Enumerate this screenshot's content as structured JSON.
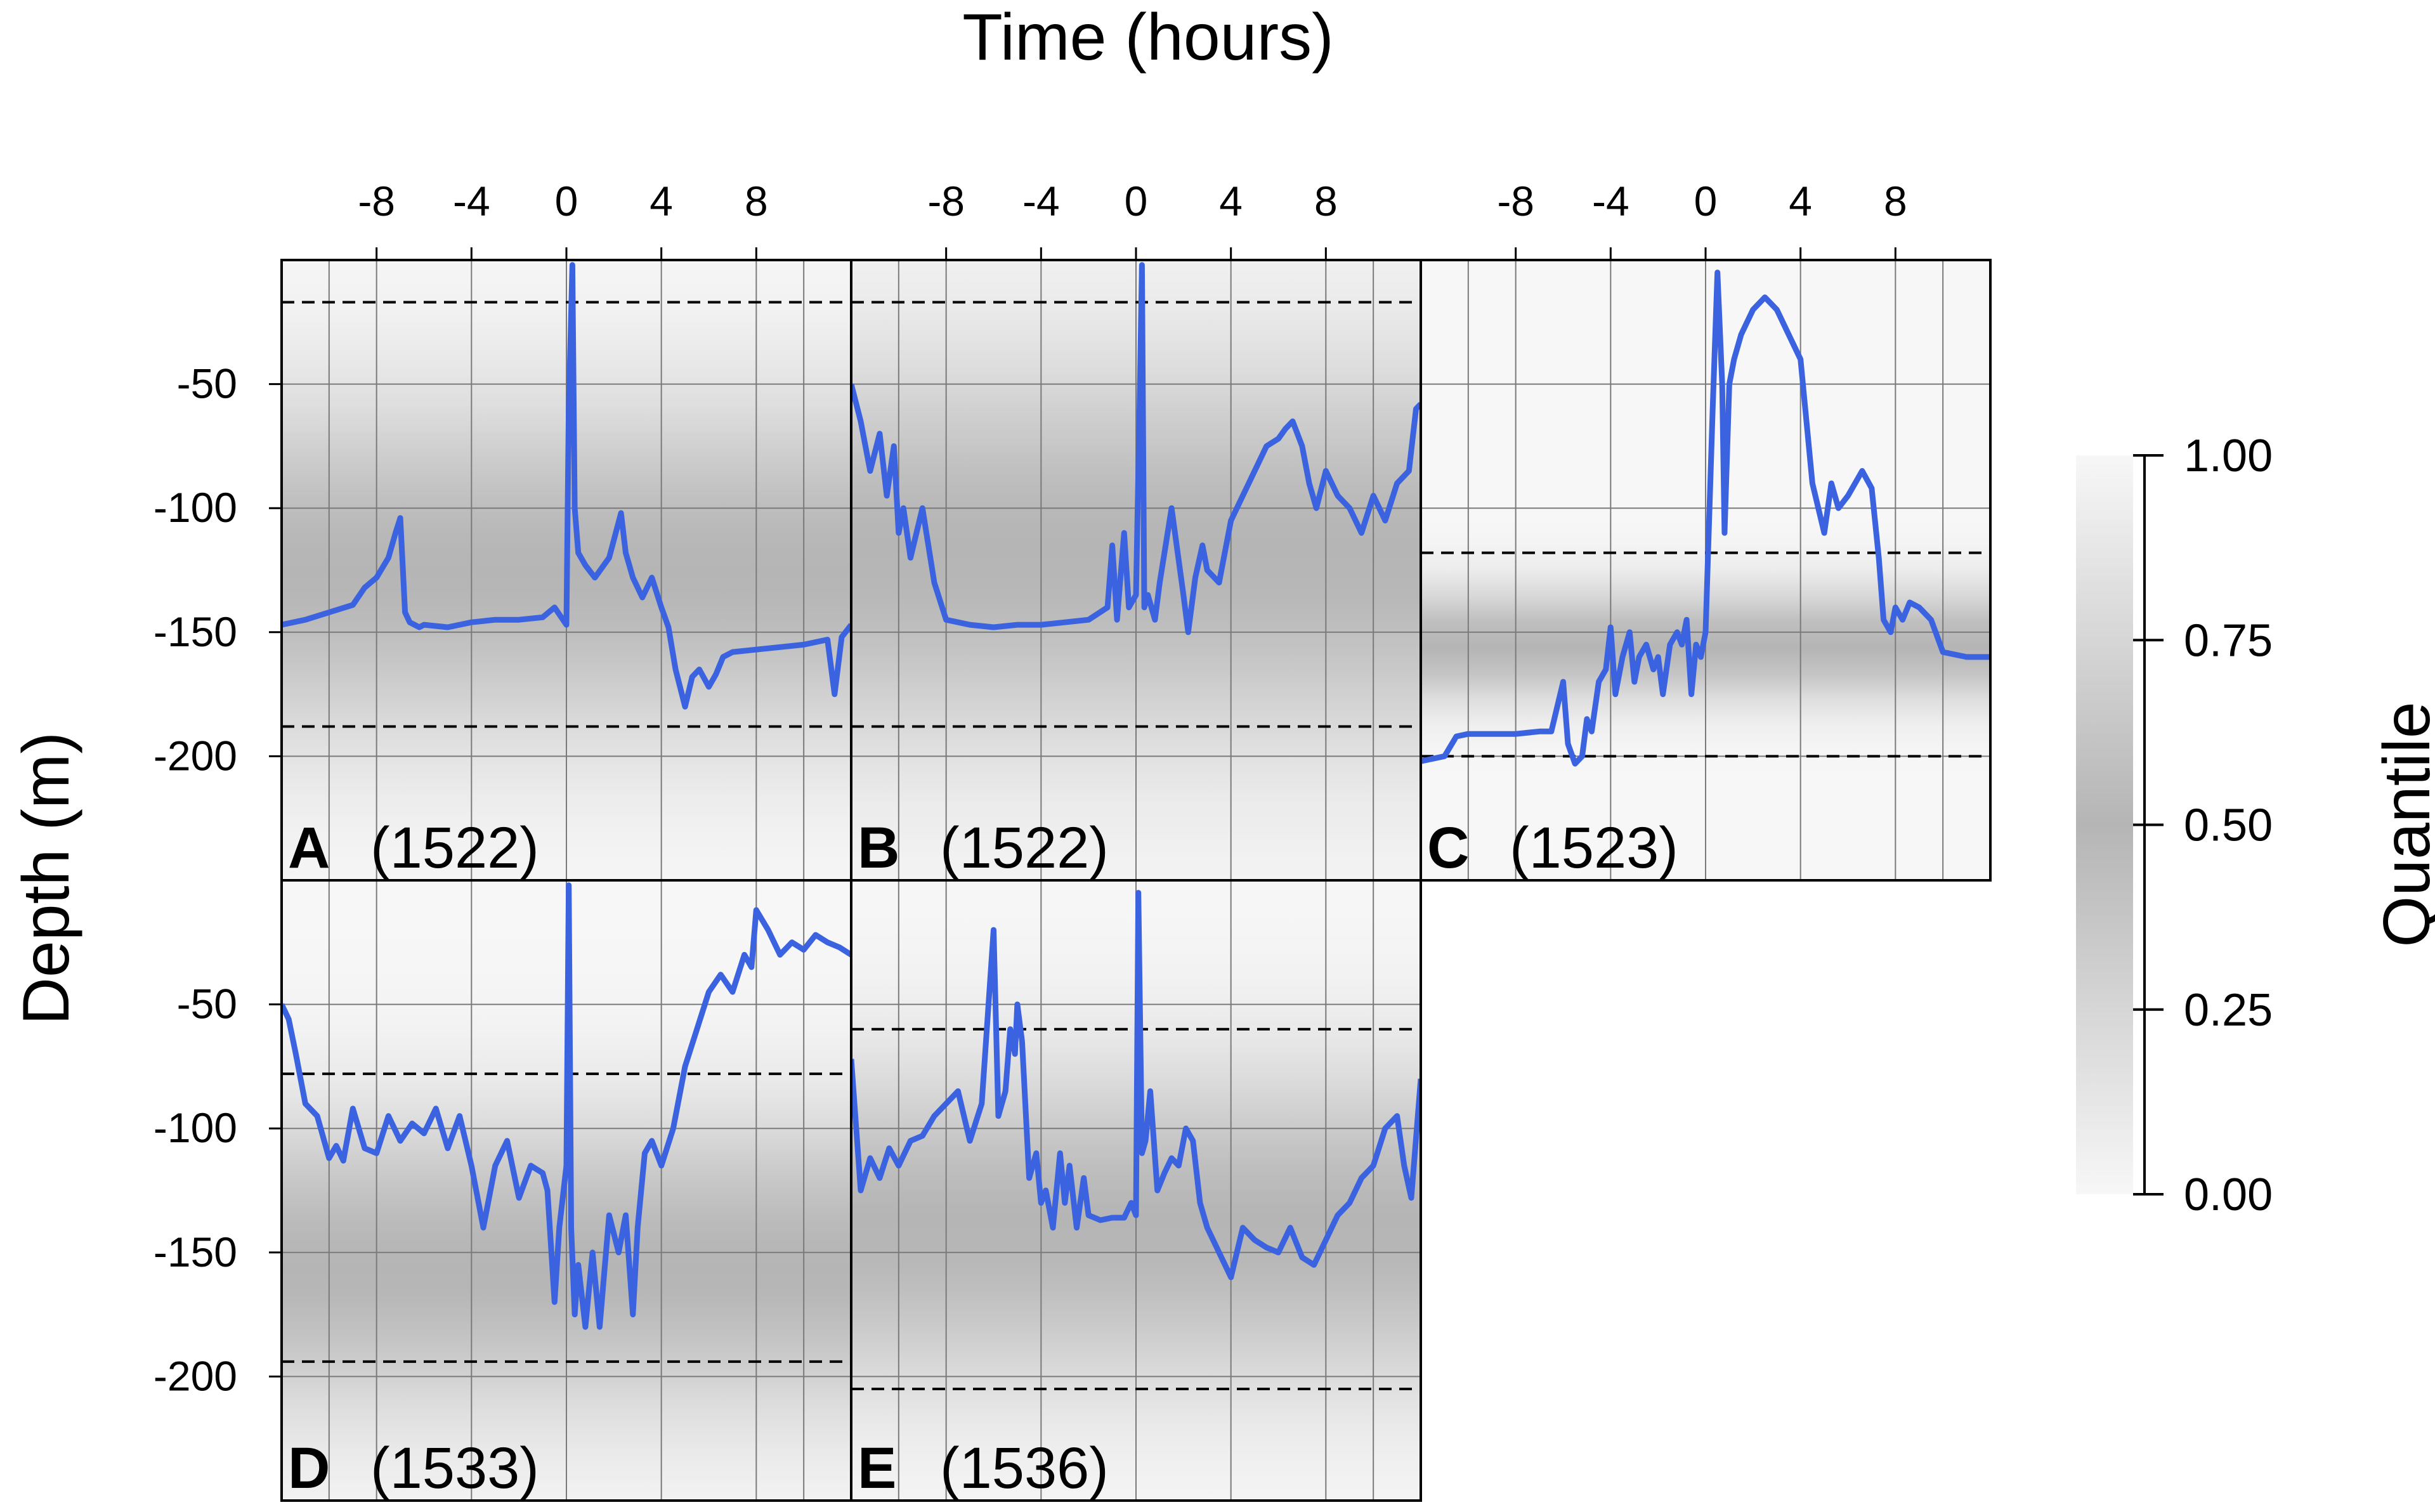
{
  "chart_data": {
    "type": "line",
    "title": "",
    "xlabel": "Time (hours)",
    "ylabel": "Depth (m)",
    "x_ticks": [
      "-8",
      "-4",
      "0",
      "4",
      "8"
    ],
    "y_ticks": [
      "-50",
      "-100",
      "-150",
      "-200"
    ],
    "xlim": [
      -12,
      12
    ],
    "ylim": [
      -250,
      0
    ],
    "grid": true,
    "series_color": "#3b63e0",
    "colorbar": {
      "title": "Quantile",
      "ticks": [
        "0.00",
        "0.25",
        "0.50",
        "0.75",
        "1.00"
      ]
    },
    "panels": [
      {
        "letter": "A",
        "id": "(1522)",
        "dashed": [
          -17,
          -188
        ],
        "band": {
          "center": -125,
          "spread": 48
        },
        "x": [
          -12,
          -11,
          -10,
          -9,
          -8.5,
          -8,
          -7.5,
          -7.2,
          -7,
          -6.8,
          -6.6,
          -6.4,
          -6.2,
          -6,
          -5,
          -4,
          -3,
          -2,
          -1,
          -0.5,
          0,
          0.1,
          0.25,
          0.35,
          0.5,
          0.8,
          1.2,
          1.8,
          2.3,
          2.5,
          2.8,
          3.2,
          3.6,
          4,
          4.3,
          4.6,
          5,
          5.3,
          5.6,
          6,
          6.3,
          6.6,
          7,
          8,
          9,
          10,
          11,
          11.3,
          11.6,
          12
        ],
        "y": [
          -147,
          -145,
          -142,
          -139,
          -132,
          -128,
          -120,
          -110,
          -104,
          -142,
          -146,
          -147,
          -148,
          -147,
          -148,
          -146,
          -145,
          -145,
          -144,
          -140,
          -147,
          -60,
          -2,
          -100,
          -118,
          -123,
          -128,
          -120,
          -102,
          -118,
          -128,
          -136,
          -128,
          -140,
          -148,
          -165,
          -180,
          -168,
          -165,
          -172,
          -167,
          -160,
          -158,
          -157,
          -156,
          -155,
          -153,
          -175,
          -152,
          -147
        ]
      },
      {
        "letter": "B",
        "id": "(1522)",
        "dashed": [
          -17,
          -188
        ],
        "band": {
          "center": -118,
          "spread": 55
        },
        "x": [
          -12,
          -11.6,
          -11.2,
          -10.8,
          -10.5,
          -10.2,
          -10,
          -9.8,
          -9.5,
          -9,
          -8.5,
          -8,
          -7,
          -6,
          -5,
          -4,
          -3,
          -2,
          -1.2,
          -1,
          -0.8,
          -0.5,
          -0.3,
          0,
          0.15,
          0.25,
          0.35,
          0.5,
          0.8,
          1,
          1.5,
          2,
          2.2,
          2.5,
          2.8,
          3,
          3.5,
          4,
          4.5,
          5,
          5.5,
          6,
          6.3,
          6.6,
          7,
          7.3,
          7.6,
          8,
          8.5,
          9,
          9.5,
          10,
          10.5,
          11,
          11.5,
          11.8,
          12
        ],
        "y": [
          -50,
          -65,
          -85,
          -70,
          -95,
          -75,
          -110,
          -100,
          -120,
          -100,
          -130,
          -145,
          -147,
          -148,
          -147,
          -147,
          -146,
          -145,
          -140,
          -115,
          -145,
          -110,
          -140,
          -135,
          -60,
          -2,
          -140,
          -135,
          -145,
          -130,
          -100,
          -135,
          -150,
          -128,
          -115,
          -125,
          -130,
          -105,
          -95,
          -85,
          -75,
          -72,
          -68,
          -65,
          -75,
          -90,
          -100,
          -85,
          -95,
          -100,
          -110,
          -95,
          -105,
          -90,
          -85,
          -60,
          -58
        ]
      },
      {
        "letter": "C",
        "id": "(1523)",
        "dashed": [
          -118,
          -200
        ],
        "band": {
          "center": -155,
          "spread": 16
        },
        "x": [
          -12,
          -11.5,
          -11,
          -10.5,
          -10,
          -9,
          -8,
          -7,
          -6.5,
          -6,
          -5.8,
          -5.5,
          -5.2,
          -5,
          -4.8,
          -4.5,
          -4.2,
          -4,
          -3.8,
          -3.5,
          -3.2,
          -3,
          -2.8,
          -2.5,
          -2.2,
          -2,
          -1.8,
          -1.5,
          -1.2,
          -1,
          -0.8,
          -0.6,
          -0.4,
          -0.2,
          0,
          0.1,
          0.3,
          0.5,
          0.7,
          0.8,
          1,
          1.2,
          1.5,
          2,
          2.5,
          3,
          3.5,
          4,
          4.5,
          5,
          5.3,
          5.6,
          6,
          6.3,
          6.6,
          7,
          7.3,
          7.5,
          7.8,
          8,
          8.3,
          8.6,
          9,
          9.5,
          10,
          10.5,
          11,
          12
        ],
        "y": [
          -202,
          -201,
          -200,
          -192,
          -191,
          -191,
          -191,
          -190,
          -190,
          -170,
          -195,
          -203,
          -200,
          -185,
          -190,
          -170,
          -165,
          -148,
          -175,
          -160,
          -150,
          -170,
          -160,
          -155,
          -165,
          -160,
          -175,
          -155,
          -150,
          -155,
          -145,
          -175,
          -155,
          -160,
          -150,
          -120,
          -60,
          -5,
          -50,
          -110,
          -50,
          -40,
          -30,
          -20,
          -15,
          -20,
          -30,
          -40,
          -90,
          -110,
          -90,
          -100,
          -95,
          -90,
          -85,
          -92,
          -120,
          -145,
          -150,
          -140,
          -145,
          -138,
          -140,
          -145,
          -158,
          -159,
          -160,
          -160
        ]
      },
      {
        "letter": "D",
        "id": "(1533)",
        "dashed": [
          -78,
          -194
        ],
        "band": {
          "center": -155,
          "spread": 42
        },
        "x": [
          -12,
          -11.7,
          -11.4,
          -11,
          -10.5,
          -10,
          -9.7,
          -9.4,
          -9,
          -8.5,
          -8,
          -7.5,
          -7,
          -6.5,
          -6,
          -5.5,
          -5,
          -4.5,
          -4,
          -3.5,
          -3,
          -2.5,
          -2,
          -1.5,
          -1,
          -0.8,
          -0.5,
          -0.3,
          0,
          0.1,
          0.2,
          0.35,
          0.5,
          0.8,
          1.1,
          1.4,
          1.8,
          2.2,
          2.5,
          2.8,
          3,
          3.3,
          3.6,
          4,
          4.5,
          5,
          5.5,
          6,
          6.5,
          7,
          7.5,
          7.8,
          8,
          8.5,
          9,
          9.5,
          10,
          10.5,
          11,
          11.5,
          12
        ],
        "y": [
          -50,
          -56,
          -70,
          -90,
          -95,
          -112,
          -107,
          -113,
          -92,
          -108,
          -110,
          -95,
          -105,
          -98,
          -102,
          -92,
          -108,
          -95,
          -115,
          -140,
          -115,
          -105,
          -128,
          -115,
          -118,
          -125,
          -170,
          -140,
          -115,
          -2,
          -140,
          -175,
          -155,
          -180,
          -150,
          -180,
          -135,
          -150,
          -135,
          -175,
          -140,
          -110,
          -105,
          -115,
          -100,
          -75,
          -60,
          -45,
          -38,
          -45,
          -30,
          -35,
          -12,
          -20,
          -30,
          -25,
          -28,
          -22,
          -25,
          -27,
          -30
        ]
      },
      {
        "letter": "E",
        "id": "(1536)",
        "dashed": [
          -60,
          -205
        ],
        "band": {
          "center": -140,
          "spread": 45
        },
        "x": [
          -12,
          -11.6,
          -11.2,
          -10.8,
          -10.4,
          -10,
          -9.5,
          -9,
          -8.5,
          -8,
          -7.5,
          -7,
          -6.5,
          -6,
          -5.8,
          -5.5,
          -5.3,
          -5.1,
          -5,
          -4.8,
          -4.5,
          -4.2,
          -4,
          -3.8,
          -3.5,
          -3.2,
          -3,
          -2.8,
          -2.5,
          -2.2,
          -2,
          -1.5,
          -1,
          -0.5,
          -0.2,
          0,
          0.1,
          0.25,
          0.4,
          0.6,
          0.9,
          1.2,
          1.5,
          1.8,
          2.1,
          2.4,
          2.7,
          3,
          3.5,
          4,
          4.5,
          5,
          5.5,
          6,
          6.5,
          7,
          7.5,
          8,
          8.5,
          9,
          9.5,
          10,
          10.5,
          11,
          11.3,
          11.6,
          12
        ],
        "y": [
          -72,
          -125,
          -112,
          -120,
          -108,
          -115,
          -105,
          -103,
          -95,
          -90,
          -85,
          -105,
          -90,
          -20,
          -95,
          -85,
          -60,
          -70,
          -50,
          -65,
          -120,
          -110,
          -130,
          -125,
          -140,
          -110,
          -130,
          -115,
          -140,
          -120,
          -135,
          -137,
          -136,
          -136,
          -130,
          -135,
          -5,
          -110,
          -105,
          -85,
          -125,
          -118,
          -112,
          -115,
          -100,
          -105,
          -130,
          -140,
          -150,
          -160,
          -140,
          -145,
          -148,
          -150,
          -140,
          -152,
          -155,
          -145,
          -135,
          -130,
          -120,
          -115,
          -100,
          -95,
          -115,
          -128,
          -80
        ]
      }
    ]
  }
}
